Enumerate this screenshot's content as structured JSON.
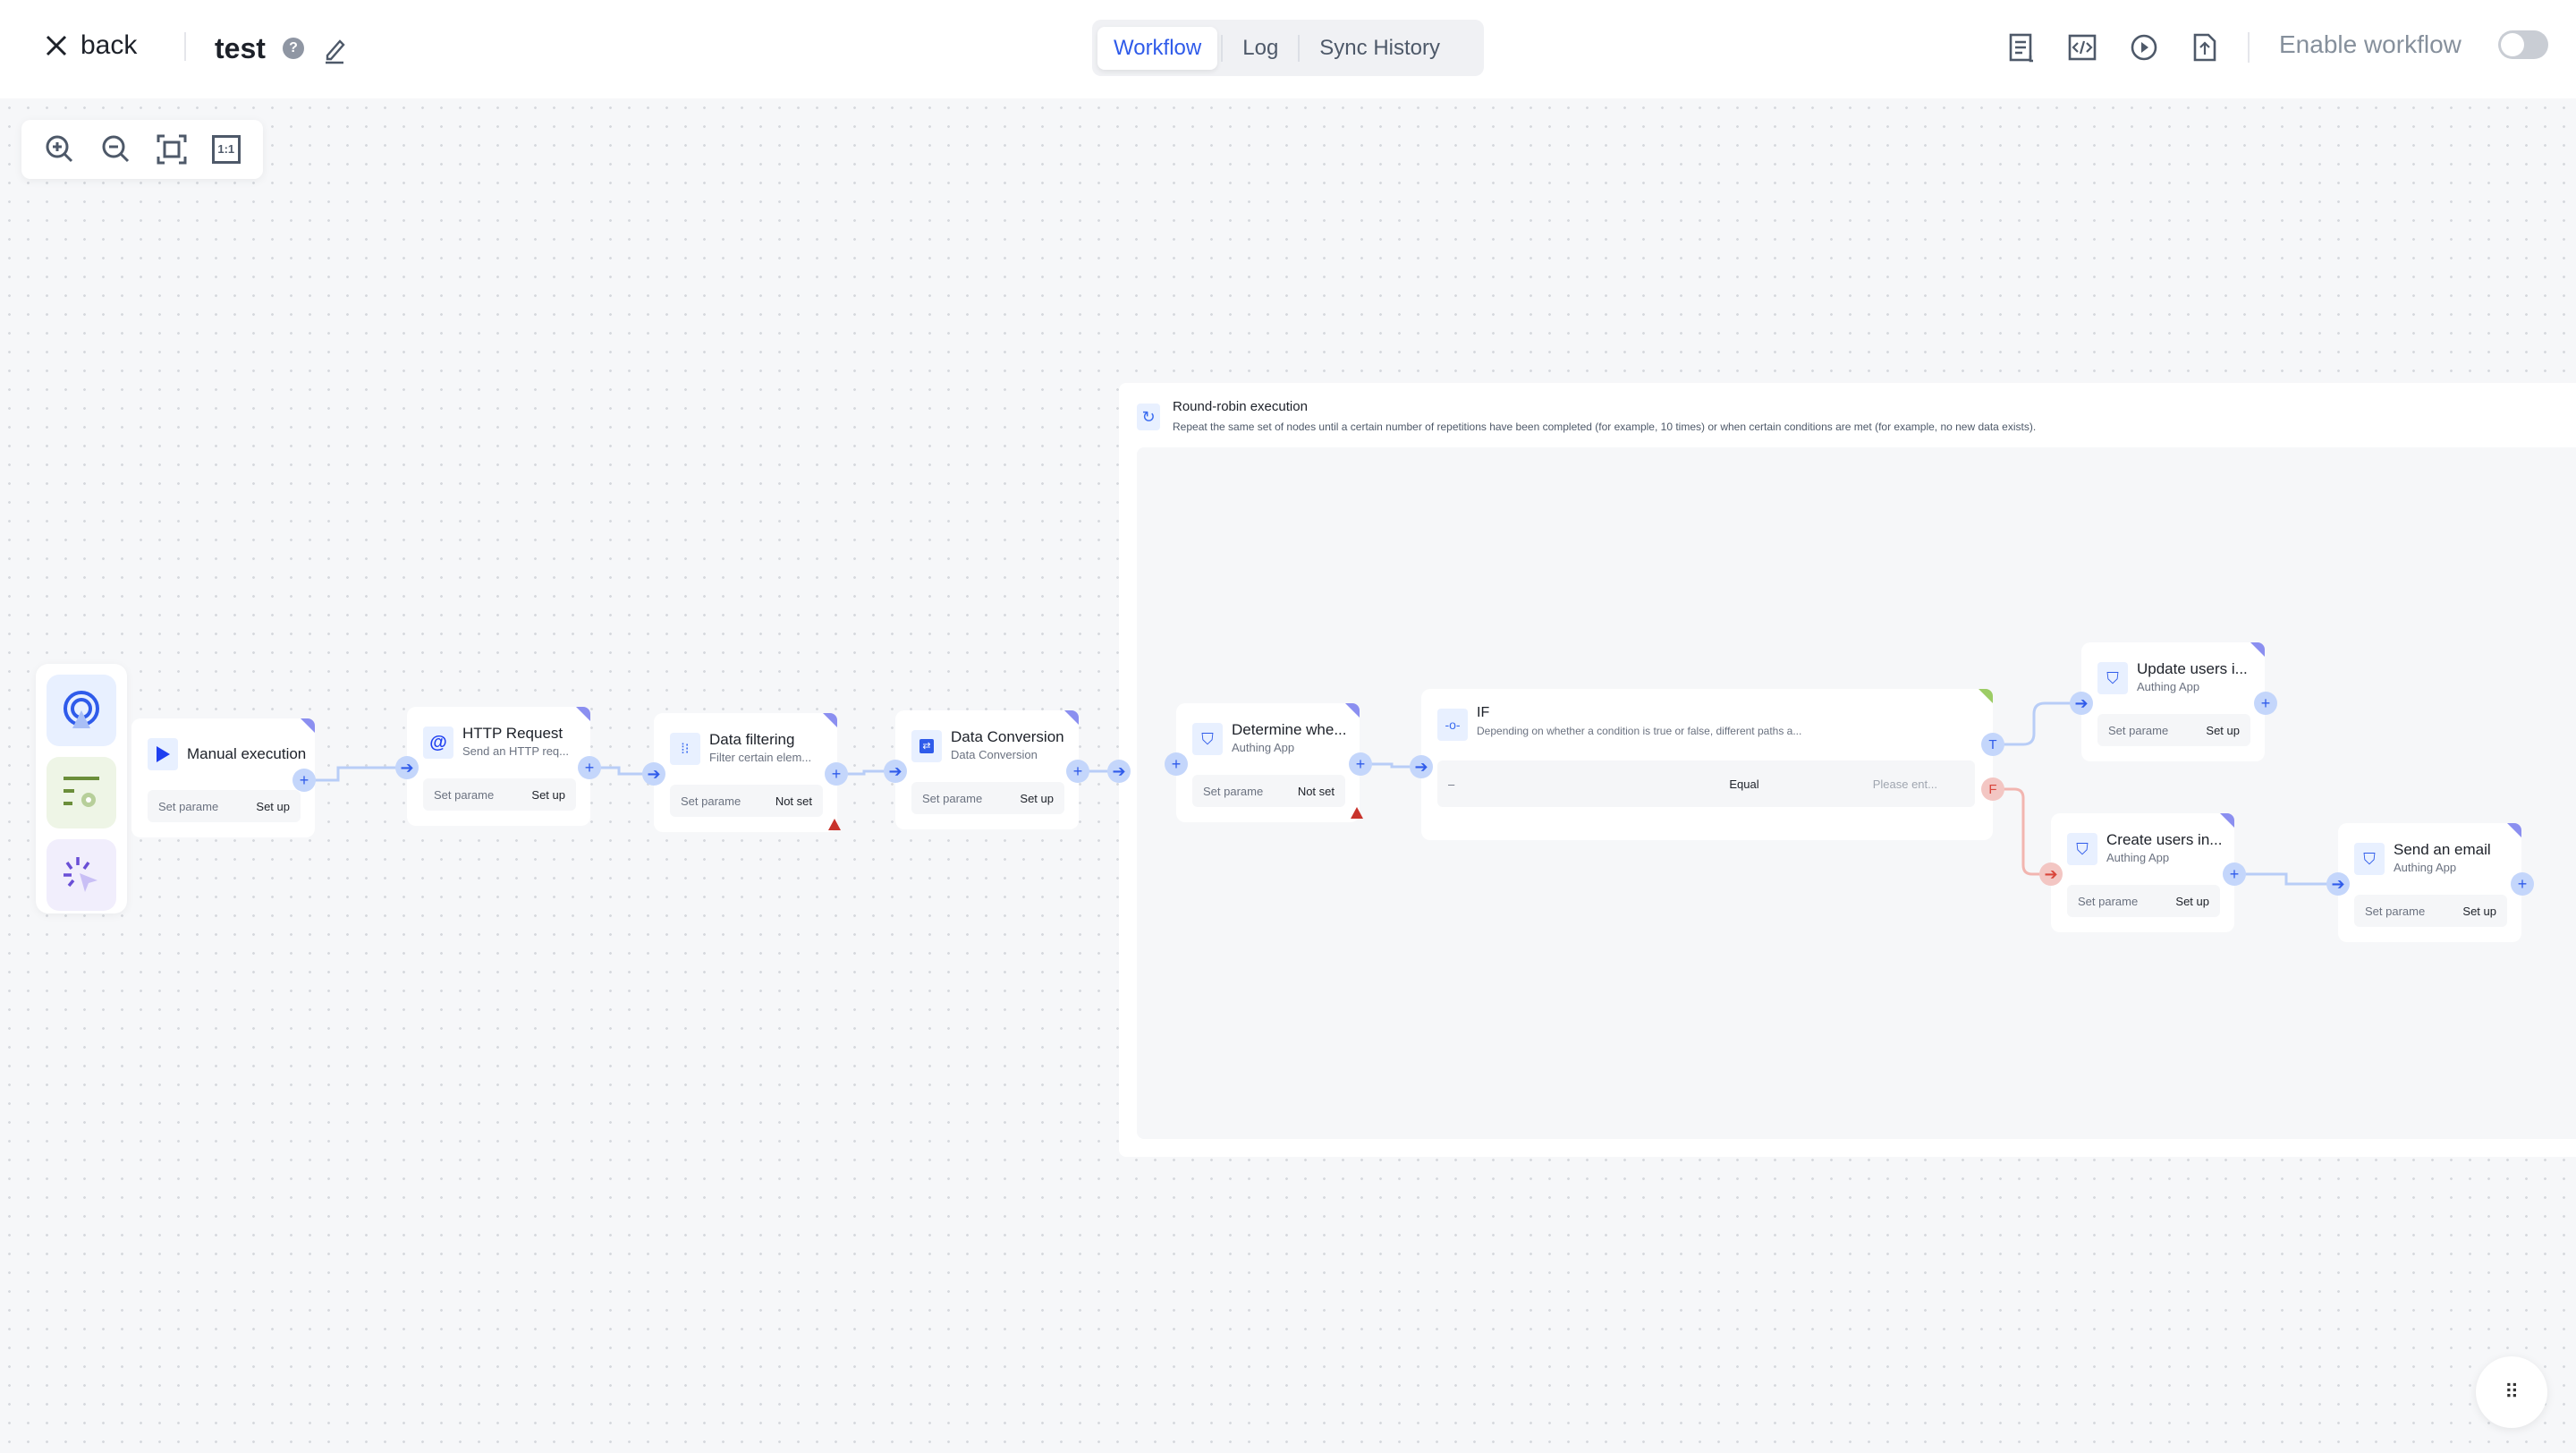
{
  "header": {
    "back_label": "back",
    "title": "test",
    "tabs": [
      "Workflow",
      "Log",
      "Sync History"
    ],
    "active_tab": "Workflow",
    "enable_label": "Enable workflow",
    "enabled": false,
    "icons": [
      "doc-list-icon",
      "code-icon",
      "play-icon",
      "export-icon"
    ]
  },
  "zoom_toolbar": [
    "zoom-in-icon",
    "zoom-out-icon",
    "fit-view-icon"
  ],
  "zoom_toolbar_actual_size": "1:1",
  "loop": {
    "title": "Round-robin execution",
    "description": "Repeat the same set of nodes until a certain number of repetitions have been completed (for example, 10 times) or when certain conditions are met (for example, no new data exists)."
  },
  "nodes": {
    "manual": {
      "title": "Manual execution",
      "param_label": "Set parame",
      "param_value": "Set up"
    },
    "http": {
      "title": "HTTP Request",
      "subtitle": "Send an HTTP req...",
      "param_label": "Set parame",
      "param_value": "Set up"
    },
    "filter": {
      "title": "Data filtering",
      "subtitle": "Filter certain elem...",
      "param_label": "Set parame",
      "param_value": "Not set"
    },
    "convert": {
      "title": "Data Conversion",
      "subtitle": "Data Conversion",
      "param_label": "Set parame",
      "param_value": "Set up"
    },
    "determine": {
      "title": "Determine whe...",
      "subtitle": "Authing App",
      "param_label": "Set parame",
      "param_value": "Not set"
    },
    "if": {
      "title": "IF",
      "subtitle": "Depending on whether a condition is true or false, different paths a...",
      "cond_left": "–",
      "cond_op": "Equal",
      "cond_right_placeholder": "Please ent...",
      "true_label": "T",
      "false_label": "F"
    },
    "update": {
      "title": "Update users i...",
      "subtitle": "Authing App",
      "param_label": "Set parame",
      "param_value": "Set up"
    },
    "create": {
      "title": "Create users in...",
      "subtitle": "Authing App",
      "param_label": "Set parame",
      "param_value": "Set up"
    },
    "email": {
      "title": "Send an email",
      "subtitle": "Authing App",
      "param_label": "Set parame",
      "param_value": "Set up"
    }
  },
  "colors": {
    "accent": "#2f5bea",
    "port": "#c4d6fb",
    "false_port": "#f3c6c3",
    "warning": "#c8332c",
    "corner": "#8b8ff0",
    "if_corner": "#9ccc65"
  }
}
